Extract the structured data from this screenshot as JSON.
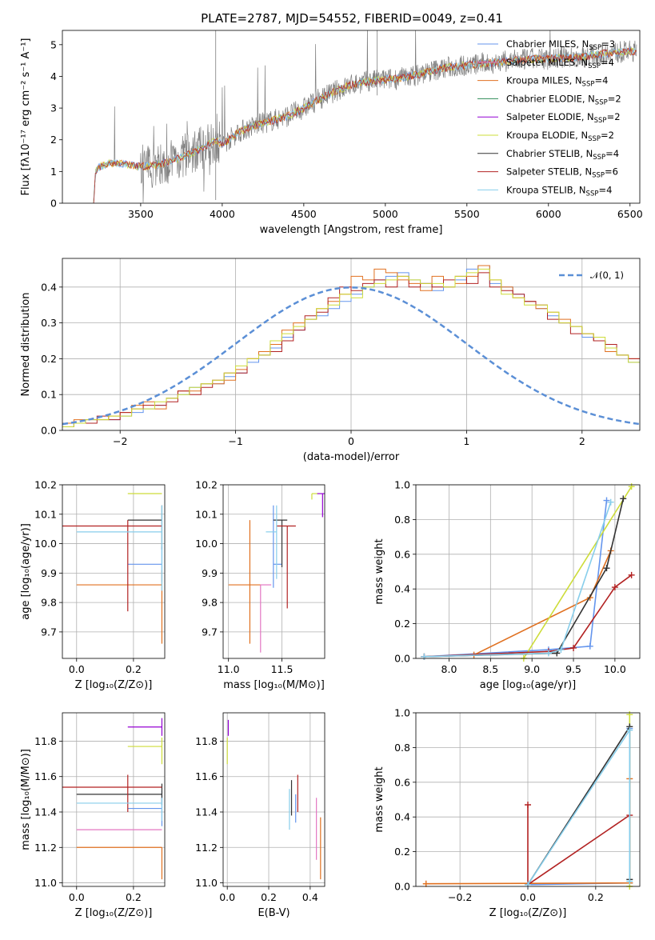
{
  "figure_title": "PLATE=2787, MJD=54552, FIBERID=0049, z=0.41",
  "palette": [
    "#6495ed",
    "#ff7f0e",
    "#2e8b57",
    "#9400d3",
    "#cddc39",
    "#000000",
    "#b22222",
    "#87ceeb",
    "#e377c2",
    "#e07020"
  ],
  "legend_spectrum": [
    {
      "label": "Chabrier MILES, N",
      "sub": "SSP",
      "tail": "=3",
      "color": "#6495ed"
    },
    {
      "label": "Salpeter MILES, N",
      "sub": "SSP",
      "tail": "=4",
      "color": "#e377c2"
    },
    {
      "label": "Kroupa MILES, N",
      "sub": "SSP",
      "tail": "=4",
      "color": "#e07020"
    },
    {
      "label": "Chabrier ELODIE, N",
      "sub": "SSP",
      "tail": "=2",
      "color": "#2e8b57"
    },
    {
      "label": "Salpeter ELODIE, N",
      "sub": "SSP",
      "tail": "=2",
      "color": "#9400d3"
    },
    {
      "label": "Kroupa ELODIE, N",
      "sub": "SSP",
      "tail": "=2",
      "color": "#cddc39"
    },
    {
      "label": "Chabrier STELIB, N",
      "sub": "SSP",
      "tail": "=4",
      "color": "#333333"
    },
    {
      "label": "Salpeter STELIB, N",
      "sub": "SSP",
      "tail": "=6",
      "color": "#b22222"
    },
    {
      "label": "Kroupa STELIB, N",
      "sub": "SSP",
      "tail": "=4",
      "color": "#87ceeb"
    }
  ],
  "hist_legend": "𝒩(0, 1)",
  "chart_data": [
    {
      "type": "line",
      "id": "spectrum",
      "xlabel": "wavelength [Angstrom, rest frame]",
      "ylabel": "Flux [fλ10⁻¹⁷ erg cm⁻² s⁻¹ A⁻¹]",
      "xlim": [
        3020,
        6560
      ],
      "ylim": [
        0,
        5.45
      ],
      "xticks": [
        3500,
        4000,
        4500,
        5000,
        5500,
        6000,
        6500
      ],
      "yticks": [
        0,
        1,
        2,
        3,
        4,
        5
      ],
      "data_series": {
        "name": "",
        "color": "#808080",
        "x_start": 3210,
        "x_end": 6540
      },
      "model_continuum": {
        "x": [
          3210,
          3225,
          3250,
          3300,
          3400,
          3500,
          3600,
          3700,
          3800,
          3900,
          3960,
          4000,
          4100,
          4200,
          4300,
          4400,
          4500,
          4600,
          4700,
          4800,
          4900,
          5000,
          5100,
          5200,
          5300,
          5400,
          5500,
          5600,
          5700,
          5800,
          5900,
          6000,
          6100,
          6200,
          6300,
          6400,
          6540
        ],
        "y": [
          0,
          1.05,
          1.15,
          1.25,
          1.25,
          1.15,
          1.2,
          1.35,
          1.55,
          1.8,
          2.0,
          1.85,
          2.25,
          2.45,
          2.6,
          2.75,
          3.0,
          3.3,
          3.55,
          3.75,
          3.85,
          3.9,
          3.95,
          4.05,
          4.2,
          4.3,
          4.35,
          4.4,
          4.45,
          4.5,
          4.55,
          4.55,
          4.6,
          4.6,
          4.7,
          4.75,
          4.8
        ]
      }
    },
    {
      "type": "bar",
      "id": "residual-hist",
      "xlabel": "(data-model)/error",
      "ylabel": "Normed distribution",
      "xlim": [
        -2.5,
        2.5
      ],
      "ylim": [
        0,
        0.48
      ],
      "xticks": [
        -2,
        -1,
        0,
        1,
        2
      ],
      "yticks": [
        0.0,
        0.1,
        0.2,
        0.3,
        0.4
      ],
      "bin_width": 0.1,
      "bins_start": -2.5,
      "series": [
        {
          "color": "#6495ed",
          "values": [
            0.01,
            0.02,
            0.03,
            0.03,
            0.03,
            0.04,
            0.05,
            0.06,
            0.07,
            0.09,
            0.1,
            0.12,
            0.13,
            0.13,
            0.15,
            0.16,
            0.19,
            0.21,
            0.23,
            0.26,
            0.28,
            0.31,
            0.32,
            0.34,
            0.36,
            0.38,
            0.4,
            0.42,
            0.43,
            0.44,
            0.42,
            0.41,
            0.39,
            0.4,
            0.42,
            0.45,
            0.46,
            0.41,
            0.4,
            0.38,
            0.36,
            0.34,
            0.32,
            0.3,
            0.29,
            0.26,
            0.25,
            0.23,
            0.21,
            0.19
          ]
        },
        {
          "color": "#e07020",
          "values": [
            0.02,
            0.03,
            0.03,
            0.03,
            0.04,
            0.05,
            0.07,
            0.08,
            0.06,
            0.09,
            0.11,
            0.11,
            0.13,
            0.13,
            0.14,
            0.17,
            0.2,
            0.22,
            0.24,
            0.28,
            0.3,
            0.31,
            0.34,
            0.36,
            0.38,
            0.43,
            0.42,
            0.45,
            0.44,
            0.42,
            0.41,
            0.39,
            0.43,
            0.4,
            0.41,
            0.43,
            0.46,
            0.42,
            0.4,
            0.37,
            0.36,
            0.34,
            0.33,
            0.31,
            0.29,
            0.27,
            0.25,
            0.22,
            0.21,
            0.2
          ]
        },
        {
          "color": "#b22222",
          "values": [
            0.01,
            0.02,
            0.02,
            0.04,
            0.03,
            0.05,
            0.06,
            0.07,
            0.07,
            0.08,
            0.11,
            0.1,
            0.12,
            0.14,
            0.16,
            0.16,
            0.2,
            0.21,
            0.22,
            0.25,
            0.28,
            0.32,
            0.33,
            0.37,
            0.4,
            0.39,
            0.41,
            0.42,
            0.4,
            0.43,
            0.4,
            0.41,
            0.4,
            0.42,
            0.43,
            0.41,
            0.44,
            0.4,
            0.39,
            0.38,
            0.36,
            0.35,
            0.31,
            0.3,
            0.27,
            0.27,
            0.25,
            0.24,
            0.21,
            0.2
          ]
        },
        {
          "color": "#cddc39",
          "values": [
            0.01,
            0.02,
            0.03,
            0.03,
            0.04,
            0.04,
            0.06,
            0.06,
            0.08,
            0.09,
            0.1,
            0.12,
            0.13,
            0.14,
            0.16,
            0.18,
            0.2,
            0.21,
            0.25,
            0.27,
            0.29,
            0.31,
            0.34,
            0.35,
            0.38,
            0.37,
            0.4,
            0.41,
            0.42,
            0.43,
            0.42,
            0.41,
            0.41,
            0.4,
            0.43,
            0.44,
            0.45,
            0.42,
            0.38,
            0.37,
            0.35,
            0.35,
            0.33,
            0.3,
            0.29,
            0.27,
            0.26,
            0.23,
            0.21,
            0.19
          ]
        }
      ],
      "gaussian_reference": {
        "mean": 0,
        "sigma": 1,
        "color": "#5b8fd6"
      }
    },
    {
      "type": "scatter",
      "id": "z-vs-age",
      "xlabel": "Z [log₁₀(Z/Z⊙)]",
      "ylabel": "age  [log₁₀(age/yr)]",
      "xlim": [
        -0.05,
        0.31
      ],
      "ylim": [
        9.61,
        10.2
      ],
      "xticks": [
        0.0,
        0.2
      ],
      "yticks": [
        9.7,
        9.8,
        9.9,
        10.0,
        10.1,
        10.2
      ],
      "points": [
        {
          "x": 0.3,
          "y": 9.93,
          "xerr": [
            0.12,
            0.0
          ],
          "yerr": [
            0.06,
            0.06
          ],
          "color": "#6495ed"
        },
        {
          "x": 0.3,
          "y": 9.86,
          "xerr": [
            0.3,
            0.0
          ],
          "yerr": [
            0.2,
            0.05
          ],
          "color": "#e07020"
        },
        {
          "x": 0.3,
          "y": 10.17,
          "xerr": [
            0.12,
            0.0
          ],
          "yerr": [
            0.0,
            0.0
          ],
          "color": "#cddc39"
        },
        {
          "x": 0.3,
          "y": 10.08,
          "xerr": [
            0.12,
            0.0
          ],
          "yerr": [
            0.1,
            0.05
          ],
          "color": "#333333"
        },
        {
          "x": 0.18,
          "y": 10.06,
          "xerr": [
            0.3,
            0.12
          ],
          "yerr": [
            0.29,
            0.02
          ],
          "color": "#b22222"
        },
        {
          "x": 0.3,
          "y": 10.04,
          "xerr": [
            0.3,
            0.0
          ],
          "yerr": [
            0.2,
            0.09
          ],
          "color": "#87ceeb"
        }
      ]
    },
    {
      "type": "scatter",
      "id": "mass-vs-age",
      "xlabel": "mass [log₁₀(M/M⊙)]",
      "ylabel": "",
      "xlim": [
        10.95,
        11.9
      ],
      "ylim": [
        9.61,
        10.2
      ],
      "xticks": [
        11.0,
        11.5
      ],
      "yticks": [
        9.7,
        9.8,
        9.9,
        10.0,
        10.1,
        10.2
      ],
      "points": [
        {
          "x": 11.42,
          "y": 9.93,
          "xerr": [
            0.0,
            0.08
          ],
          "yerr": [
            0.08,
            0.2
          ],
          "color": "#6495ed"
        },
        {
          "x": 11.2,
          "y": 9.86,
          "xerr": [
            0.2,
            0.1
          ],
          "yerr": [
            0.2,
            0.22
          ],
          "color": "#e07020"
        },
        {
          "x": 11.3,
          "y": 9.86,
          "xerr": [
            0.0,
            0.1
          ],
          "yerr": [
            0.23,
            0.0
          ],
          "color": "#e377c2"
        },
        {
          "x": 11.78,
          "y": 10.17,
          "xerr": [
            0.0,
            0.06
          ],
          "yerr": [
            0.02,
            0.0
          ],
          "color": "#cddc39"
        },
        {
          "x": 11.88,
          "y": 10.17,
          "xerr": [
            0.05,
            0.02
          ],
          "yerr": [
            0.08,
            0.0
          ],
          "color": "#9400d3"
        },
        {
          "x": 11.5,
          "y": 10.08,
          "xerr": [
            0.08,
            0.05
          ],
          "yerr": [
            0.16,
            0.0
          ],
          "color": "#333333"
        },
        {
          "x": 11.55,
          "y": 10.06,
          "xerr": [
            0.1,
            0.08
          ],
          "yerr": [
            0.28,
            0.0
          ],
          "color": "#b22222"
        },
        {
          "x": 11.45,
          "y": 10.04,
          "xerr": [
            0.1,
            0.0
          ],
          "yerr": [
            0.16,
            0.09
          ],
          "color": "#87ceeb"
        }
      ]
    },
    {
      "type": "line",
      "id": "age-mass-weight",
      "xlabel": "age  [log₁₀(age/yr)]",
      "ylabel": "mass weight",
      "xlim": [
        7.6,
        10.3
      ],
      "ylim": [
        0,
        1.0
      ],
      "xticks": [
        8.0,
        8.5,
        9.0,
        9.5,
        10.0
      ],
      "yticks": [
        0.0,
        0.2,
        0.4,
        0.6,
        0.8,
        1.0
      ],
      "series": [
        {
          "color": "#6495ed",
          "x": [
            7.7,
            9.2,
            9.7,
            9.9
          ],
          "y": [
            0.01,
            0.05,
            0.07,
            0.91
          ]
        },
        {
          "color": "#e07020",
          "x": [
            8.3,
            9.7,
            9.95
          ],
          "y": [
            0.02,
            0.35,
            0.62
          ]
        },
        {
          "color": "#cddc39",
          "x": [
            8.9,
            10.2
          ],
          "y": [
            0.0,
            0.99
          ]
        },
        {
          "color": "#333333",
          "x": [
            7.7,
            9.3,
            9.9,
            10.1
          ],
          "y": [
            0.01,
            0.03,
            0.52,
            0.92
          ]
        },
        {
          "color": "#b22222",
          "x": [
            7.7,
            9.2,
            9.5,
            10.0,
            10.2
          ],
          "y": [
            0.01,
            0.04,
            0.06,
            0.41,
            0.48
          ]
        },
        {
          "color": "#87ceeb",
          "x": [
            7.7,
            9.2,
            9.35,
            9.95
          ],
          "y": [
            0.01,
            0.03,
            0.05,
            0.9
          ]
        }
      ]
    },
    {
      "type": "scatter",
      "id": "z-vs-mass",
      "xlabel": "Z [log₁₀(Z/Z⊙)]",
      "ylabel": "mass [log₁₀(M/M⊙)]",
      "xlim": [
        -0.05,
        0.31
      ],
      "ylim": [
        10.98,
        11.96
      ],
      "xticks": [
        0.0,
        0.2
      ],
      "yticks": [
        11.0,
        11.2,
        11.4,
        11.6,
        11.8
      ],
      "points": [
        {
          "x": 0.3,
          "y": 11.42,
          "xerr": [
            0.12,
            0.0
          ],
          "yerr": [
            0.1,
            0.1
          ],
          "color": "#6495ed"
        },
        {
          "x": 0.3,
          "y": 11.2,
          "xerr": [
            0.3,
            0.0
          ],
          "yerr": [
            0.18,
            0.0
          ],
          "color": "#e07020"
        },
        {
          "x": 0.3,
          "y": 11.3,
          "xerr": [
            0.3,
            0.0
          ],
          "yerr": [
            0.0,
            0.0
          ],
          "color": "#e377c2"
        },
        {
          "x": 0.3,
          "y": 11.88,
          "xerr": [
            0.12,
            0.0
          ],
          "yerr": [
            0.05,
            0.05
          ],
          "color": "#9400d3"
        },
        {
          "x": 0.3,
          "y": 11.77,
          "xerr": [
            0.12,
            0.0
          ],
          "yerr": [
            0.1,
            0.05
          ],
          "color": "#cddc39"
        },
        {
          "x": 0.3,
          "y": 11.5,
          "xerr": [
            0.3,
            0.0
          ],
          "yerr": [
            0.06,
            0.06
          ],
          "color": "#333333"
        },
        {
          "x": 0.18,
          "y": 11.54,
          "xerr": [
            0.3,
            0.12
          ],
          "yerr": [
            0.14,
            0.07
          ],
          "color": "#b22222"
        },
        {
          "x": 0.3,
          "y": 11.45,
          "xerr": [
            0.3,
            0.0
          ],
          "yerr": [
            0.1,
            0.03
          ],
          "color": "#87ceeb"
        }
      ]
    },
    {
      "type": "scatter",
      "id": "ebv-vs-mass",
      "xlabel": "E(B-V)",
      "ylabel": "",
      "xlim": [
        -0.02,
        0.47
      ],
      "ylim": [
        10.98,
        11.96
      ],
      "xticks": [
        0.0,
        0.2,
        0.4
      ],
      "yticks": [
        11.0,
        11.2,
        11.4,
        11.6,
        11.8
      ],
      "points": [
        {
          "x": 0.33,
          "y": 11.42,
          "yerr": [
            0.08,
            0.08
          ],
          "color": "#6495ed"
        },
        {
          "x": 0.45,
          "y": 11.2,
          "yerr": [
            0.18,
            0.17
          ],
          "color": "#e07020"
        },
        {
          "x": 0.43,
          "y": 11.3,
          "yerr": [
            0.17,
            0.18
          ],
          "color": "#e377c2"
        },
        {
          "x": 0.005,
          "y": 11.88,
          "yerr": [
            0.05,
            0.04
          ],
          "color": "#9400d3"
        },
        {
          "x": 0.0,
          "y": 11.77,
          "yerr": [
            0.1,
            0.05
          ],
          "color": "#cddc39"
        },
        {
          "x": 0.31,
          "y": 11.5,
          "yerr": [
            0.12,
            0.08
          ],
          "color": "#333333"
        },
        {
          "x": 0.34,
          "y": 11.54,
          "yerr": [
            0.14,
            0.07
          ],
          "color": "#b22222"
        },
        {
          "x": 0.3,
          "y": 11.4,
          "yerr": [
            0.1,
            0.13
          ],
          "color": "#87ceeb"
        }
      ]
    },
    {
      "type": "line",
      "id": "z-mass-weight",
      "xlabel": "Z [log₁₀(Z/Z⊙)]",
      "ylabel": "mass weight",
      "xlim": [
        -0.33,
        0.33
      ],
      "ylim": [
        0,
        1.0
      ],
      "xticks": [
        -0.2,
        0.0,
        0.2
      ],
      "yticks": [
        0.0,
        0.2,
        0.4,
        0.6,
        0.8,
        1.0
      ],
      "series": [
        {
          "color": "#6495ed",
          "x": [
            0.0,
            0.3,
            0.3
          ],
          "y": [
            0.01,
            0.02,
            0.91
          ]
        },
        {
          "color": "#e07020",
          "x": [
            -0.3,
            0.3,
            0.3
          ],
          "y": [
            0.015,
            0.02,
            0.62
          ]
        },
        {
          "color": "#cddc39",
          "x": [
            0.3,
            0.3
          ],
          "y": [
            0.0,
            0.99
          ]
        },
        {
          "color": "#333333",
          "x": [
            0.0,
            0.3,
            0.3
          ],
          "y": [
            0.01,
            0.92,
            0.04
          ]
        },
        {
          "color": "#b22222",
          "x": [
            0.0,
            0.0,
            0.0,
            0.3
          ],
          "y": [
            0.47,
            0.01,
            0.01,
            0.41
          ]
        },
        {
          "color": "#87ceeb",
          "x": [
            0.0,
            0.3,
            0.3
          ],
          "y": [
            0.01,
            0.9,
            0.03
          ]
        }
      ]
    }
  ]
}
